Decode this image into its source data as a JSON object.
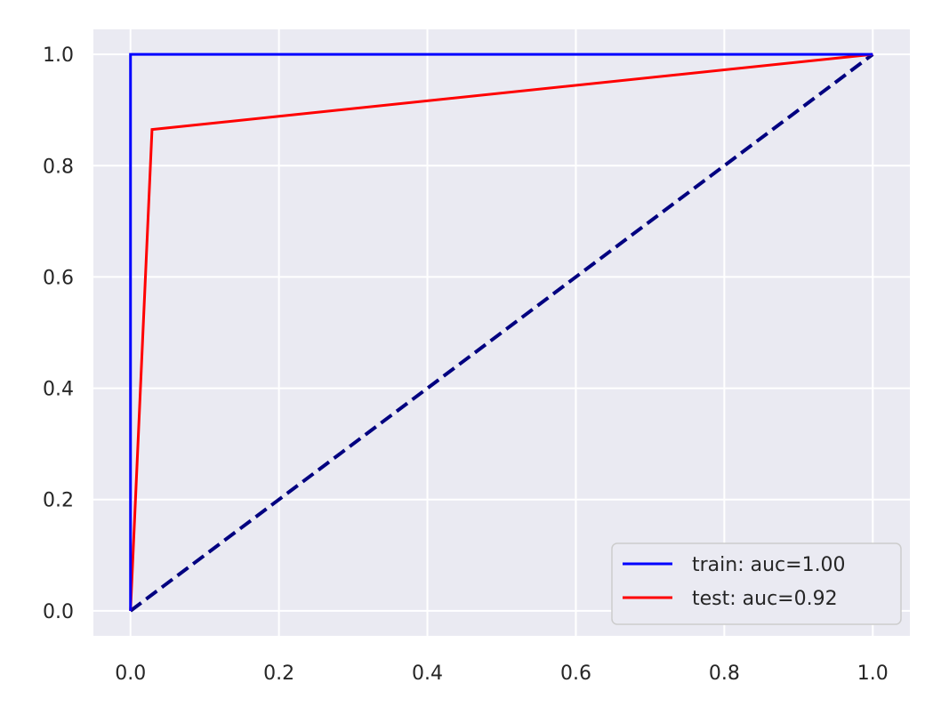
{
  "chart_data": {
    "type": "line",
    "title": "",
    "xlabel": "",
    "ylabel": "",
    "xlim": [
      -0.05,
      1.05
    ],
    "ylim": [
      -0.045,
      1.045
    ],
    "x_ticks": [
      0.0,
      0.2,
      0.4,
      0.6,
      0.8,
      1.0
    ],
    "y_ticks": [
      0.0,
      0.2,
      0.4,
      0.6,
      0.8,
      1.0
    ],
    "x_tick_labels": [
      "0.0",
      "0.2",
      "0.4",
      "0.6",
      "0.8",
      "1.0"
    ],
    "y_tick_labels": [
      "0.0",
      "0.2",
      "0.4",
      "0.6",
      "0.8",
      "1.0"
    ],
    "grid": true,
    "legend_position": "lower-right",
    "series": [
      {
        "name": "train: auc=1.00",
        "color": "#0000ff",
        "style": "solid",
        "in_legend": true,
        "points": [
          [
            0.0,
            0.0
          ],
          [
            0.0,
            1.0
          ],
          [
            1.0,
            1.0
          ]
        ]
      },
      {
        "name": "test: auc=0.92",
        "color": "#ff0000",
        "style": "solid",
        "in_legend": true,
        "points": [
          [
            0.0,
            0.0
          ],
          [
            0.029,
            0.865
          ],
          [
            1.0,
            1.0
          ]
        ]
      },
      {
        "name": "",
        "color": "#000080",
        "style": "dashed",
        "in_legend": false,
        "points": [
          [
            0.0,
            0.0
          ],
          [
            1.0,
            1.0
          ]
        ]
      }
    ],
    "colors": {
      "plot_background": "#eaeaf2",
      "grid": "#ffffff",
      "tick_label": "#262626",
      "legend_background": "#eaeaf2",
      "legend_border": "#cccccc"
    }
  }
}
